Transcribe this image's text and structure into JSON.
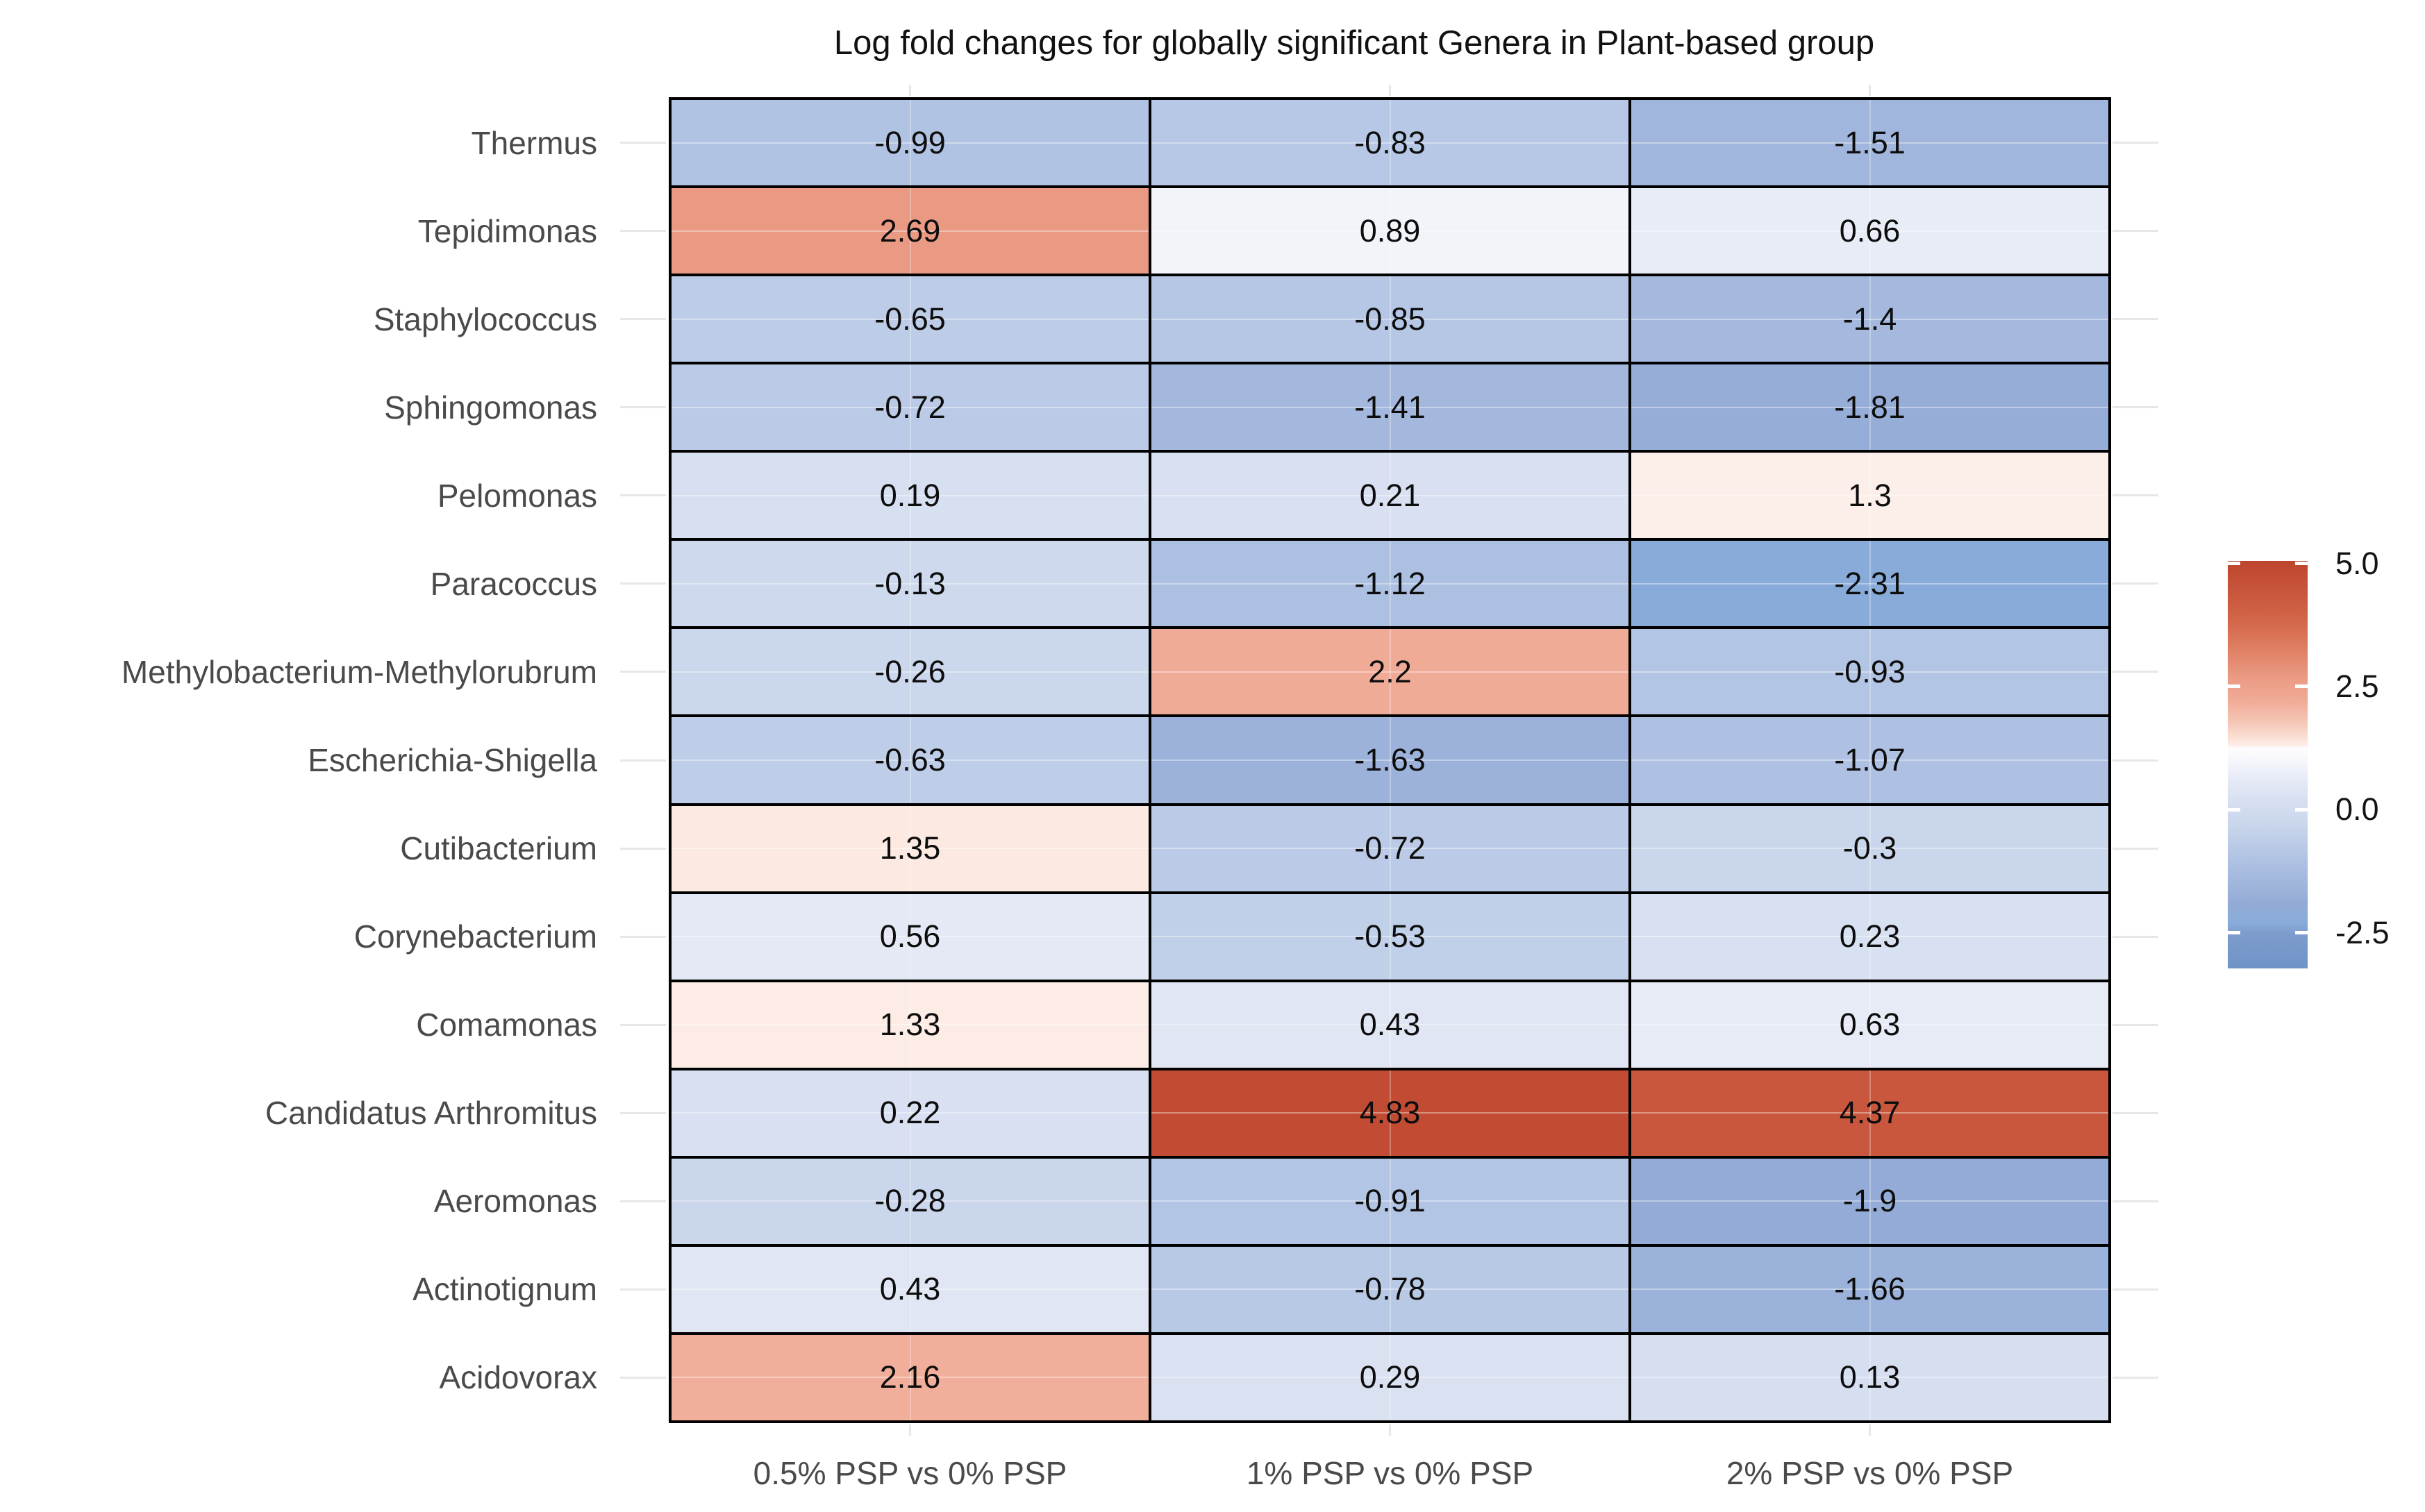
{
  "title": "Log fold changes for globally significant Genera in Plant-based group",
  "chart_data": {
    "type": "heatmap",
    "title": "Log fold changes for globally significant Genera in Plant-based group",
    "rows": [
      "Thermus",
      "Tepidimonas",
      "Staphylococcus",
      "Sphingomonas",
      "Pelomonas",
      "Paracoccus",
      "Methylobacterium-Methylorubrum",
      "Escherichia-Shigella",
      "Cutibacterium",
      "Corynebacterium",
      "Comamonas",
      "Candidatus Arthromitus",
      "Aeromonas",
      "Actinotignum",
      "Acidovorax"
    ],
    "columns": [
      "0.5% PSP vs 0% PSP",
      "1% PSP vs 0% PSP",
      "2% PSP vs 0% PSP"
    ],
    "values": [
      [
        -0.99,
        -0.83,
        -1.51
      ],
      [
        2.69,
        0.89,
        0.66
      ],
      [
        -0.65,
        -0.85,
        -1.4
      ],
      [
        -0.72,
        -1.41,
        -1.81
      ],
      [
        0.19,
        0.21,
        1.3
      ],
      [
        -0.13,
        -1.12,
        -2.31
      ],
      [
        -0.26,
        2.2,
        -0.93
      ],
      [
        -0.63,
        -1.63,
        -1.07
      ],
      [
        1.35,
        -0.72,
        -0.3
      ],
      [
        0.56,
        -0.53,
        0.23
      ],
      [
        1.33,
        0.43,
        0.63
      ],
      [
        0.22,
        4.83,
        4.37
      ],
      [
        -0.28,
        -0.91,
        -1.9
      ],
      [
        0.43,
        -0.78,
        -1.66
      ],
      [
        2.16,
        0.29,
        0.13
      ]
    ],
    "value_labels": [
      [
        "-0.99",
        "-0.83",
        "-1.51"
      ],
      [
        "2.69",
        "0.89",
        "0.66"
      ],
      [
        "-0.65",
        "-0.85",
        "-1.4"
      ],
      [
        "-0.72",
        "-1.41",
        "-1.81"
      ],
      [
        "0.19",
        "0.21",
        "1.3"
      ],
      [
        "-0.13",
        "-1.12",
        "-2.31"
      ],
      [
        "-0.26",
        "2.2",
        "-0.93"
      ],
      [
        "-0.63",
        "-1.63",
        "-1.07"
      ],
      [
        "1.35",
        "-0.72",
        "-0.3"
      ],
      [
        "0.56",
        "-0.53",
        "0.23"
      ],
      [
        "1.33",
        "0.43",
        "0.63"
      ],
      [
        "0.22",
        "4.83",
        "4.37"
      ],
      [
        "-0.28",
        "-0.91",
        "-1.9"
      ],
      [
        "0.43",
        "-0.78",
        "-1.66"
      ],
      [
        "2.16",
        "0.29",
        "0.13"
      ]
    ],
    "legend": {
      "tick_labels": [
        "5.0",
        "2.5",
        "0.0",
        "-2.5"
      ],
      "tick_values": [
        5.0,
        2.5,
        0.0,
        -2.5
      ],
      "bar_top_value": 5.05,
      "bar_bottom_value": -3.22
    },
    "color_scale": {
      "midpoint": 1.25,
      "anchors": [
        [
          -3.3,
          "#6e92c5"
        ],
        [
          -2.5,
          "#7e9ccd"
        ],
        [
          -2.3,
          "#89acda"
        ],
        [
          -1.9,
          "#93abd6"
        ],
        [
          -1.5,
          "#a1b6dc"
        ],
        [
          -1.0,
          "#b0c3e3"
        ],
        [
          -0.6,
          "#bfcee8"
        ],
        [
          -0.25,
          "#cbd7ec"
        ],
        [
          0.0,
          "#d2dcef"
        ],
        [
          0.25,
          "#d9e1f1"
        ],
        [
          0.6,
          "#e6eaf6"
        ],
        [
          0.9,
          "#f2f4fa"
        ],
        [
          1.1,
          "#fafafc"
        ],
        [
          1.25,
          "#fefdfd"
        ],
        [
          1.3,
          "#fcefe9"
        ],
        [
          1.4,
          "#fbe5db"
        ],
        [
          1.8,
          "#f5c5b4"
        ],
        [
          2.2,
          "#f0ab97"
        ],
        [
          2.7,
          "#ea9a83"
        ],
        [
          3.2,
          "#e08266"
        ],
        [
          3.8,
          "#d4674b"
        ],
        [
          4.4,
          "#c8563c"
        ],
        [
          4.9,
          "#c04a31"
        ],
        [
          5.1,
          "#bb422c"
        ]
      ]
    },
    "layout": {
      "grid_border_color": "#000000",
      "axis_text_color": "#4a4a4a",
      "cell_text_color": "#0d0d0d",
      "legend_text_color": "#141414",
      "tick_stub_color": "#e7e7e7",
      "legend_position": "right",
      "grid": "off"
    }
  }
}
